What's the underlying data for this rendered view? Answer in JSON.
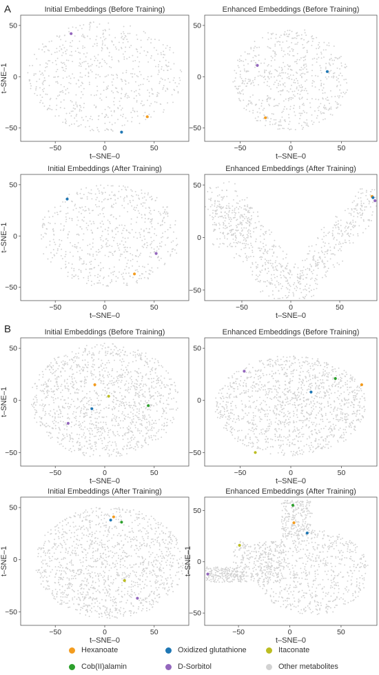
{
  "figure": {
    "section_labels": [
      "A",
      "B"
    ]
  },
  "axis_labels": {
    "x": "t–SNE–0",
    "y": "t–SNE–1"
  },
  "colors": {
    "background_points": "#d2d2d2",
    "frame": "#555555"
  },
  "chart_data": [
    {
      "type": "scatter",
      "panel": "A1",
      "title": "Initial Embeddings (Before Training)",
      "xlabel": "t–SNE–0",
      "ylabel": "t–SNE–1",
      "xlim": [
        -85,
        85
      ],
      "ylim": [
        -63,
        60
      ],
      "xticks": [
        -50,
        0,
        50
      ],
      "yticks": [
        -50,
        0,
        50
      ],
      "xtick_labels_shown": true,
      "background": {
        "shape": "disk",
        "cx": 0,
        "cy": 0,
        "rx": 78,
        "ry": 54,
        "count": 650,
        "seed": 11
      },
      "highlights": [
        {
          "label": "D-Sorbitol",
          "x": -34,
          "y": 42
        },
        {
          "label": "Hexanoate",
          "x": 43,
          "y": -39
        },
        {
          "label": "Oxidized glutathione",
          "x": 17,
          "y": -54
        }
      ]
    },
    {
      "type": "scatter",
      "panel": "A2",
      "title": "Enhanced Embeddings (Before Training)",
      "xlabel": "t–SNE–0",
      "ylabel": "",
      "xlim": [
        -85,
        85
      ],
      "ylim": [
        -63,
        60
      ],
      "xticks": [
        -50,
        0,
        50
      ],
      "yticks": [
        -50,
        0,
        50
      ],
      "xtick_labels_shown": true,
      "background": {
        "shape": "disk",
        "cx": 0,
        "cy": -3,
        "rx": 57,
        "ry": 50,
        "count": 650,
        "seed": 23
      },
      "highlights": [
        {
          "label": "D-Sorbitol",
          "x": -33,
          "y": 11
        },
        {
          "label": "Oxidized glutathione",
          "x": 36,
          "y": 5
        },
        {
          "label": "Hexanoate",
          "x": -25,
          "y": -40
        }
      ]
    },
    {
      "type": "scatter",
      "panel": "A3",
      "title": "Initial Embeddings (After Training)",
      "xlabel": "t–SNE–0",
      "ylabel": "t–SNE–1",
      "xlim": [
        -85,
        85
      ],
      "ylim": [
        -63,
        60
      ],
      "xticks": [
        -50,
        0,
        50
      ],
      "yticks": [
        -50,
        0,
        50
      ],
      "xtick_labels_shown": true,
      "background": {
        "shape": "disk",
        "cx": 5,
        "cy": 0,
        "rx": 72,
        "ry": 50,
        "count": 650,
        "seed": 37
      },
      "highlights": [
        {
          "label": "Oxidized glutathione",
          "x": -38,
          "y": 36
        },
        {
          "label": "D-Sorbitol",
          "x": 52,
          "y": -17
        },
        {
          "label": "Hexanoate",
          "x": 30,
          "y": -37
        }
      ]
    },
    {
      "type": "scatter",
      "panel": "A4",
      "title": "Enhanced Embeddings (After Training)",
      "xlabel": "t–SNE–0",
      "ylabel": "",
      "xlim": [
        -88,
        88
      ],
      "ylim": [
        -60,
        60
      ],
      "xticks": [
        -50,
        0,
        50
      ],
      "yticks": [
        -50,
        0,
        50
      ],
      "xtick_labels_shown": true,
      "background": {
        "shape": "v",
        "count": 850,
        "seed": 41
      },
      "highlights": [
        {
          "label": "Hexanoate",
          "x": 83,
          "y": 39
        },
        {
          "label": "Oxidized glutathione",
          "x": 84,
          "y": 38
        },
        {
          "label": "D-Sorbitol",
          "x": 86,
          "y": 35
        }
      ]
    },
    {
      "type": "scatter",
      "panel": "B1",
      "title": "Initial Embeddings (Before Training)",
      "xlabel": "t–SNE–0",
      "ylabel": "t–SNE–1",
      "xlim": [
        -85,
        85
      ],
      "ylim": [
        -63,
        60
      ],
      "xticks": [
        -50,
        0,
        50
      ],
      "yticks": [
        -50,
        0,
        50
      ],
      "xtick_labels_shown": true,
      "background": {
        "shape": "disk",
        "cx": 0,
        "cy": 0,
        "rx": 75,
        "ry": 55,
        "count": 1300,
        "seed": 53
      },
      "highlights": [
        {
          "label": "Hexanoate",
          "x": -10,
          "y": 15
        },
        {
          "label": "Itaconate",
          "x": 4,
          "y": 4
        },
        {
          "label": "Cob(II)alamin",
          "x": 44,
          "y": -5
        },
        {
          "label": "Oxidized glutathione",
          "x": -13,
          "y": -8
        },
        {
          "label": "D-Sorbitol",
          "x": -37,
          "y": -22
        }
      ]
    },
    {
      "type": "scatter",
      "panel": "B2",
      "title": "Enhanced Embeddings (Before Training)",
      "xlabel": "t–SNE–0",
      "ylabel": "",
      "xlim": [
        -85,
        85
      ],
      "ylim": [
        -63,
        60
      ],
      "xticks": [
        -50,
        0,
        50
      ],
      "yticks": [
        -50,
        0,
        50
      ],
      "xtick_labels_shown": true,
      "background": {
        "shape": "disk",
        "cx": 0,
        "cy": -5,
        "rx": 75,
        "ry": 48,
        "count": 1300,
        "seed": 67
      },
      "highlights": [
        {
          "label": "D-Sorbitol",
          "x": -46,
          "y": 28
        },
        {
          "label": "Cob(II)alamin",
          "x": 44,
          "y": 21
        },
        {
          "label": "Hexanoate",
          "x": 70,
          "y": 15
        },
        {
          "label": "Oxidized glutathione",
          "x": 20,
          "y": 8
        },
        {
          "label": "Itaconate",
          "x": -35,
          "y": -50
        }
      ]
    },
    {
      "type": "scatter",
      "panel": "B3",
      "title": "Initial Embeddings (After Training)",
      "xlabel": "t–SNE–0",
      "ylabel": "t–SNE–1",
      "xlim": [
        -85,
        85
      ],
      "ylim": [
        -63,
        60
      ],
      "xticks": [
        -50,
        0,
        50
      ],
      "yticks": [
        -50,
        0,
        50
      ],
      "xtick_labels_shown": true,
      "background": {
        "shape": "disk",
        "cx": 5,
        "cy": -3,
        "rx": 75,
        "ry": 54,
        "count": 1300,
        "seed": 71
      },
      "highlights": [
        {
          "label": "Hexanoate",
          "x": 9,
          "y": 41
        },
        {
          "label": "Oxidized glutathione",
          "x": 6,
          "y": 38
        },
        {
          "label": "Cob(II)alamin",
          "x": 17,
          "y": 36
        },
        {
          "label": "Itaconate",
          "x": 20,
          "y": -20
        },
        {
          "label": "D-Sorbitol",
          "x": 33,
          "y": -37
        }
      ]
    },
    {
      "type": "scatter",
      "panel": "B4",
      "title": "Enhanced Embeddings (After Training)",
      "xlabel": "t–SNE–0",
      "ylabel": "t–SNE–1",
      "xlim": [
        -83,
        85
      ],
      "ylim": [
        -62,
        63
      ],
      "xticks": [
        -50,
        0,
        50
      ],
      "yticks": [
        -50,
        0,
        50
      ],
      "xtick_labels_shown": true,
      "background": {
        "shape": "cloud",
        "count": 1400,
        "seed": 83
      },
      "highlights": [
        {
          "label": "Cob(II)alamin",
          "x": 3,
          "y": 55
        },
        {
          "label": "Hexanoate",
          "x": 4,
          "y": 38
        },
        {
          "label": "Oxidized glutathione",
          "x": 17,
          "y": 28
        },
        {
          "label": "Itaconate",
          "x": -49,
          "y": 16
        },
        {
          "label": "D-Sorbitol",
          "x": -80,
          "y": -12
        }
      ]
    }
  ],
  "legend": {
    "items": [
      {
        "label": "Hexanoate",
        "color": "#f39c1f"
      },
      {
        "label": "Oxidized glutathione",
        "color": "#1f77b4"
      },
      {
        "label": "Itaconate",
        "color": "#bcbd22"
      },
      {
        "label": "Cob(II)alamin",
        "color": "#2ca02c"
      },
      {
        "label": "D-Sorbitol",
        "color": "#9467bd"
      },
      {
        "label": "Other metabolites",
        "color": "#d2d2d2"
      }
    ]
  }
}
